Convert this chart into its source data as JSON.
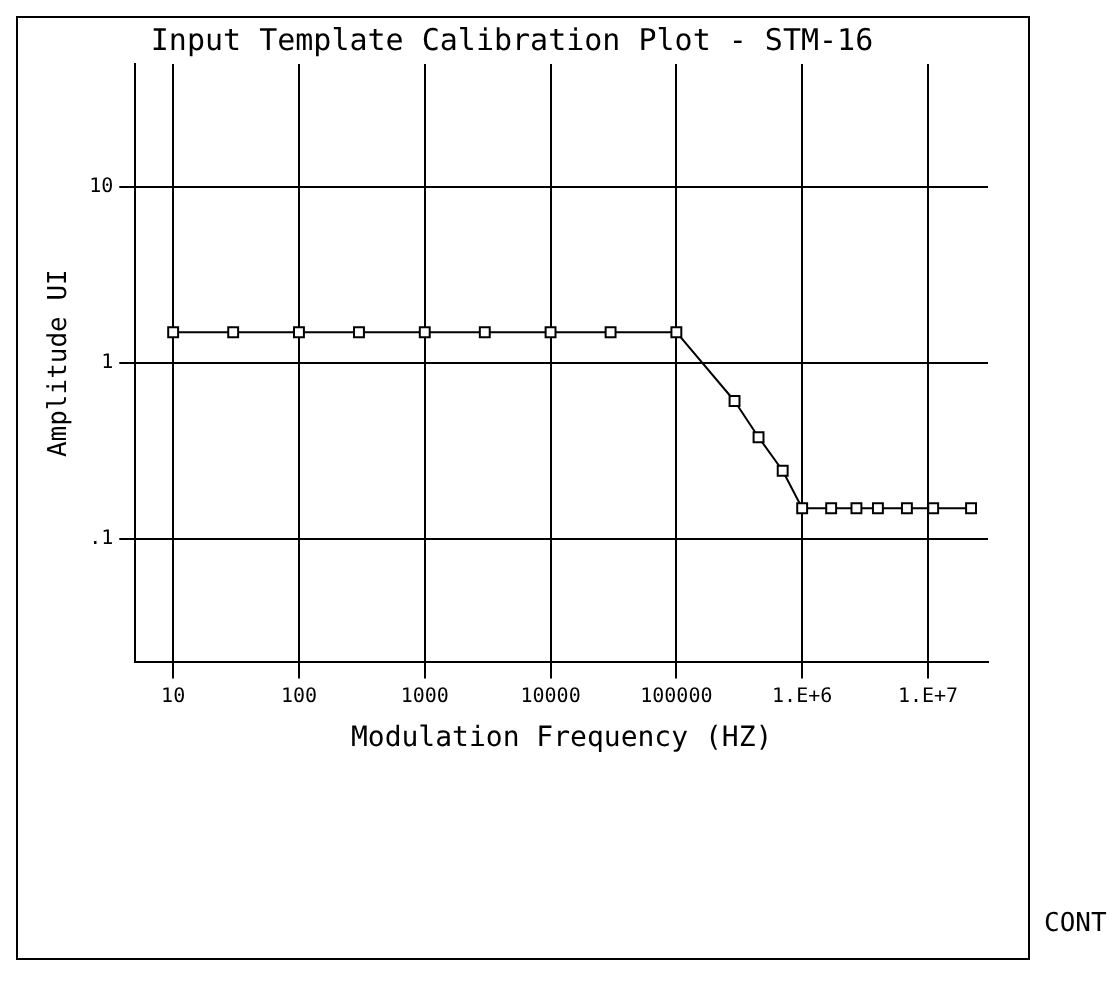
{
  "chart_data": {
    "type": "line",
    "title": "Input Template Calibration Plot - STM-16",
    "xlabel": "Modulation Frequency (HZ)",
    "ylabel": "Amplitude UI",
    "log": "xy",
    "grid": true,
    "legend": false,
    "marker": "square",
    "line_style": "solid",
    "xlim": [
      5,
      30000000
    ],
    "ylim": [
      0.02,
      50
    ],
    "xticks": [
      10,
      100,
      1000,
      10000,
      100000,
      {
        "value": 1000000,
        "label": "1.E+6"
      },
      {
        "value": 10000000,
        "label": "1.E+7"
      }
    ],
    "yticks": [
      {
        "value": 0.1,
        "label": ".1"
      },
      1,
      10
    ],
    "x": [
      10,
      30,
      100,
      300,
      1000,
      3000,
      10000,
      30000,
      100000,
      290000,
      450000,
      700000,
      1000000,
      1700000,
      2700000,
      4000000,
      6800000,
      11000000,
      22000000
    ],
    "series": [
      {
        "color": "#000000",
        "values": [
          1.5,
          1.5,
          1.5,
          1.5,
          1.5,
          1.5,
          1.5,
          1.5,
          1.5,
          0.61,
          0.38,
          0.245,
          0.15,
          0.15,
          0.15,
          0.15,
          0.15,
          0.15,
          0.15
        ]
      }
    ],
    "annotations": [
      "CONT"
    ]
  }
}
